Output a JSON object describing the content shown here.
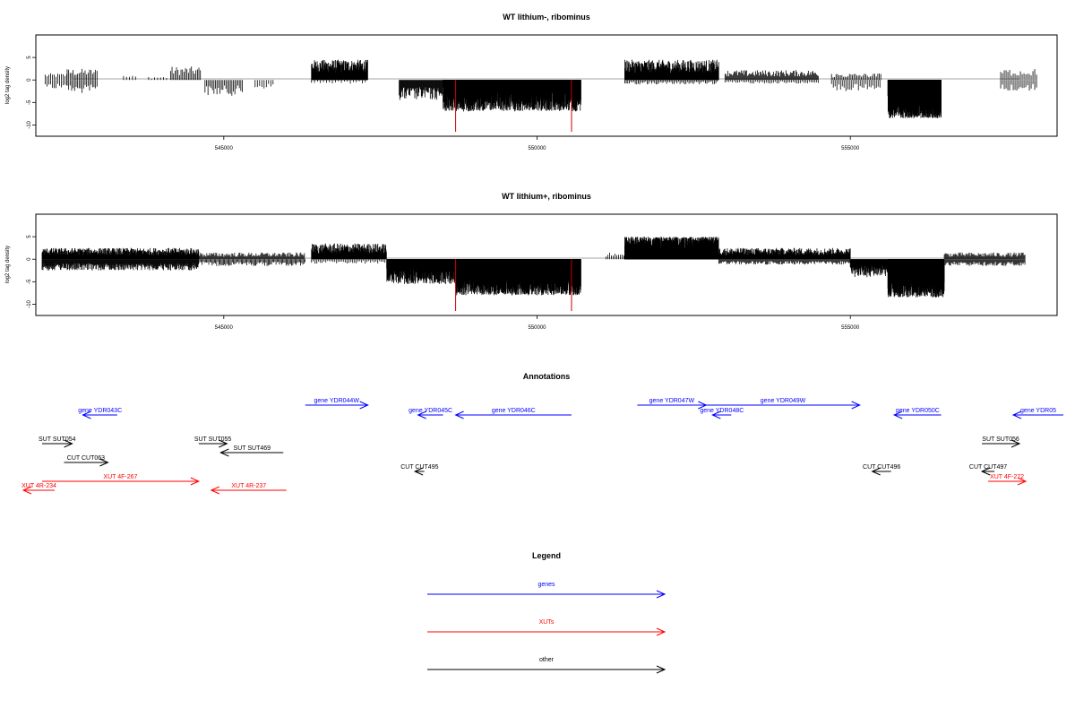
{
  "chart_data": [
    {
      "type": "bar",
      "title": "WT lithium-, ribominus",
      "ylabel": "log2 tag density",
      "xlabel": "",
      "xlim": [
        542000,
        558300
      ],
      "ylim": [
        -12.5,
        10
      ],
      "yticks": [
        -10,
        -5,
        0,
        5
      ],
      "xticks": [
        545000,
        550000,
        555000
      ],
      "grid": false,
      "marker_lines": [
        548700,
        550550
      ],
      "series": [
        {
          "segments": [
            {
              "x": [
                542150,
                542500
              ],
              "level": 1.5,
              "density": 0.5
            },
            {
              "x": [
                542150,
                542500
              ],
              "level": -2,
              "density": 0.5
            },
            {
              "x": [
                542500,
                543000
              ],
              "level": 2.5,
              "density": 0.6
            },
            {
              "x": [
                542500,
                543000
              ],
              "level": -3,
              "density": 0.6
            },
            {
              "x": [
                543400,
                543600
              ],
              "level": 1.0,
              "density": 0.3
            },
            {
              "x": [
                543800,
                544100
              ],
              "level": 0.8,
              "density": 0.3
            },
            {
              "x": [
                544150,
                544650
              ],
              "level": 3.0,
              "density": 0.6
            },
            {
              "x": [
                544700,
                545300
              ],
              "level": -3.5,
              "density": 0.6
            },
            {
              "x": [
                545500,
                545800
              ],
              "level": -2,
              "density": 0.4
            },
            {
              "x": [
                546400,
                547300
              ],
              "level": 4.5,
              "density": 3.0
            },
            {
              "x": [
                546400,
                547300
              ],
              "level": -0.8,
              "density": 0.3
            },
            {
              "x": [
                547800,
                548500
              ],
              "level": -4.5,
              "density": 1.5
            },
            {
              "x": [
                548500,
                550700
              ],
              "level": -7,
              "density": 6.0
            },
            {
              "x": [
                551400,
                552900
              ],
              "level": 4.5,
              "density": 2.5
            },
            {
              "x": [
                551400,
                552900
              ],
              "level": -1.0,
              "density": 0.6
            },
            {
              "x": [
                553000,
                554500
              ],
              "level": 2.2,
              "density": 1.0
            },
            {
              "x": [
                553000,
                554500
              ],
              "level": -0.8,
              "density": 0.5
            },
            {
              "x": [
                554700,
                555500
              ],
              "level": 1.5,
              "density": 0.6
            },
            {
              "x": [
                554700,
                555500
              ],
              "level": -2.5,
              "density": 0.5
            },
            {
              "x": [
                555600,
                556450
              ],
              "level": -8.5,
              "density": 10.0
            },
            {
              "x": [
                557400,
                558000
              ],
              "level": 2.5,
              "density": 0.5
            },
            {
              "x": [
                557400,
                558000
              ],
              "level": -2.5,
              "density": 0.5
            }
          ]
        }
      ]
    },
    {
      "type": "bar",
      "title": "WT lithium+, ribominus",
      "ylabel": "log2 tag density",
      "xlabel": "",
      "xlim": [
        542000,
        558300
      ],
      "ylim": [
        -12.5,
        10
      ],
      "yticks": [
        -10,
        -5,
        0,
        5
      ],
      "xticks": [
        545000,
        550000,
        555000
      ],
      "grid": false,
      "marker_lines": [
        548700,
        550550
      ],
      "series": [
        {
          "segments": [
            {
              "x": [
                542100,
                544600
              ],
              "level": 2.5,
              "density": 2.5
            },
            {
              "x": [
                542100,
                544600
              ],
              "level": -2.5,
              "density": 2.0
            },
            {
              "x": [
                544600,
                546300
              ],
              "level": 1.5,
              "density": 1.0
            },
            {
              "x": [
                544600,
                546300
              ],
              "level": -1.5,
              "density": 0.8
            },
            {
              "x": [
                546400,
                547600
              ],
              "level": 3.5,
              "density": 2.5
            },
            {
              "x": [
                546400,
                547600
              ],
              "level": -1.0,
              "density": 0.5
            },
            {
              "x": [
                547600,
                548700
              ],
              "level": -5.5,
              "density": 5.0
            },
            {
              "x": [
                548700,
                550700
              ],
              "level": -8,
              "density": 9.0
            },
            {
              "x": [
                551100,
                551400
              ],
              "level": 1.5,
              "density": 0.5
            },
            {
              "x": [
                551400,
                552900
              ],
              "level": 5,
              "density": 8.0
            },
            {
              "x": [
                552900,
                555000
              ],
              "level": 2.5,
              "density": 2.5
            },
            {
              "x": [
                552900,
                555000
              ],
              "level": -1.2,
              "density": 1.0
            },
            {
              "x": [
                555000,
                555700
              ],
              "level": -4,
              "density": 3.0
            },
            {
              "x": [
                555600,
                556500
              ],
              "level": -8.5,
              "density": 10.0
            },
            {
              "x": [
                556500,
                557800
              ],
              "level": 1.5,
              "density": 1.0
            },
            {
              "x": [
                556500,
                557800
              ],
              "level": -1.5,
              "density": 1.0
            }
          ]
        }
      ]
    }
  ],
  "annotations": {
    "title": "Annotations",
    "colors": {
      "gene": "#0000ff",
      "xut": "#ff0000",
      "other": "#000000"
    },
    "features": [
      {
        "label": "gene YDR043C",
        "kind": "gene",
        "strand": "-",
        "range": [
          542750,
          543300
        ],
        "row": 1
      },
      {
        "label": "gene YDR044W",
        "kind": "gene",
        "strand": "+",
        "range": [
          546300,
          547300
        ],
        "row": 0
      },
      {
        "label": "gene YDR045C",
        "kind": "gene",
        "strand": "-",
        "range": [
          548100,
          548500
        ],
        "row": 1
      },
      {
        "label": "gene YDR046C",
        "kind": "gene",
        "strand": "-",
        "range": [
          548700,
          550550
        ],
        "row": 1
      },
      {
        "label": "gene YDR047W",
        "kind": "gene",
        "strand": "+",
        "range": [
          551600,
          552700
        ],
        "row": 0
      },
      {
        "label": "gene YDR048C",
        "kind": "gene",
        "strand": "-",
        "range": [
          552800,
          553100
        ],
        "row": 1
      },
      {
        "label": "gene YDR049W",
        "kind": "gene",
        "strand": "+",
        "range": [
          552700,
          555150
        ],
        "row": 0
      },
      {
        "label": "gene YDR050C",
        "kind": "gene",
        "strand": "-",
        "range": [
          555700,
          556450
        ],
        "row": 1
      },
      {
        "label": "gene YDR05",
        "kind": "gene",
        "strand": "-",
        "range": [
          557600,
          558400
        ],
        "row": 1
      },
      {
        "label": "SUT SUT054",
        "kind": "other",
        "strand": "+",
        "range": [
          542100,
          542580
        ],
        "row": 2
      },
      {
        "label": "SUT SUT055",
        "kind": "other",
        "strand": "+",
        "range": [
          544600,
          545050
        ],
        "row": 2
      },
      {
        "label": "SUT SUT469",
        "kind": "other",
        "strand": "-",
        "range": [
          544950,
          545950
        ],
        "row": 3
      },
      {
        "label": "SUT SUT056",
        "kind": "other",
        "strand": "+",
        "range": [
          557100,
          557700
        ],
        "row": 2
      },
      {
        "label": "CUT CUT063",
        "kind": "other",
        "strand": "+",
        "range": [
          542450,
          543150
        ],
        "row": 4
      },
      {
        "label": "CUT CUT495",
        "kind": "other",
        "strand": "-",
        "range": [
          548050,
          548200
        ],
        "row": 5
      },
      {
        "label": "CUT CUT496",
        "kind": "other",
        "strand": "-",
        "range": [
          555350,
          555650
        ],
        "row": 5
      },
      {
        "label": "CUT CUT497",
        "kind": "other",
        "strand": "-",
        "range": [
          557100,
          557300
        ],
        "row": 5
      },
      {
        "label": "XUT 4F-267",
        "kind": "xut",
        "strand": "+",
        "range": [
          542100,
          544600
        ],
        "row": 6
      },
      {
        "label": "XUT 4R-234",
        "kind": "xut",
        "strand": "-",
        "range": [
          541800,
          542300
        ],
        "row": 7
      },
      {
        "label": "XUT 4R-237",
        "kind": "xut",
        "strand": "-",
        "range": [
          544800,
          546000
        ],
        "row": 7
      },
      {
        "label": "XUT 4F-272",
        "kind": "xut",
        "strand": "+",
        "range": [
          557200,
          557800
        ],
        "row": 6
      }
    ]
  },
  "legend": {
    "title": "Legend",
    "items": [
      {
        "label": "genes",
        "kind": "gene"
      },
      {
        "label": "XUTs",
        "kind": "xut"
      },
      {
        "label": "other",
        "kind": "other"
      }
    ]
  }
}
